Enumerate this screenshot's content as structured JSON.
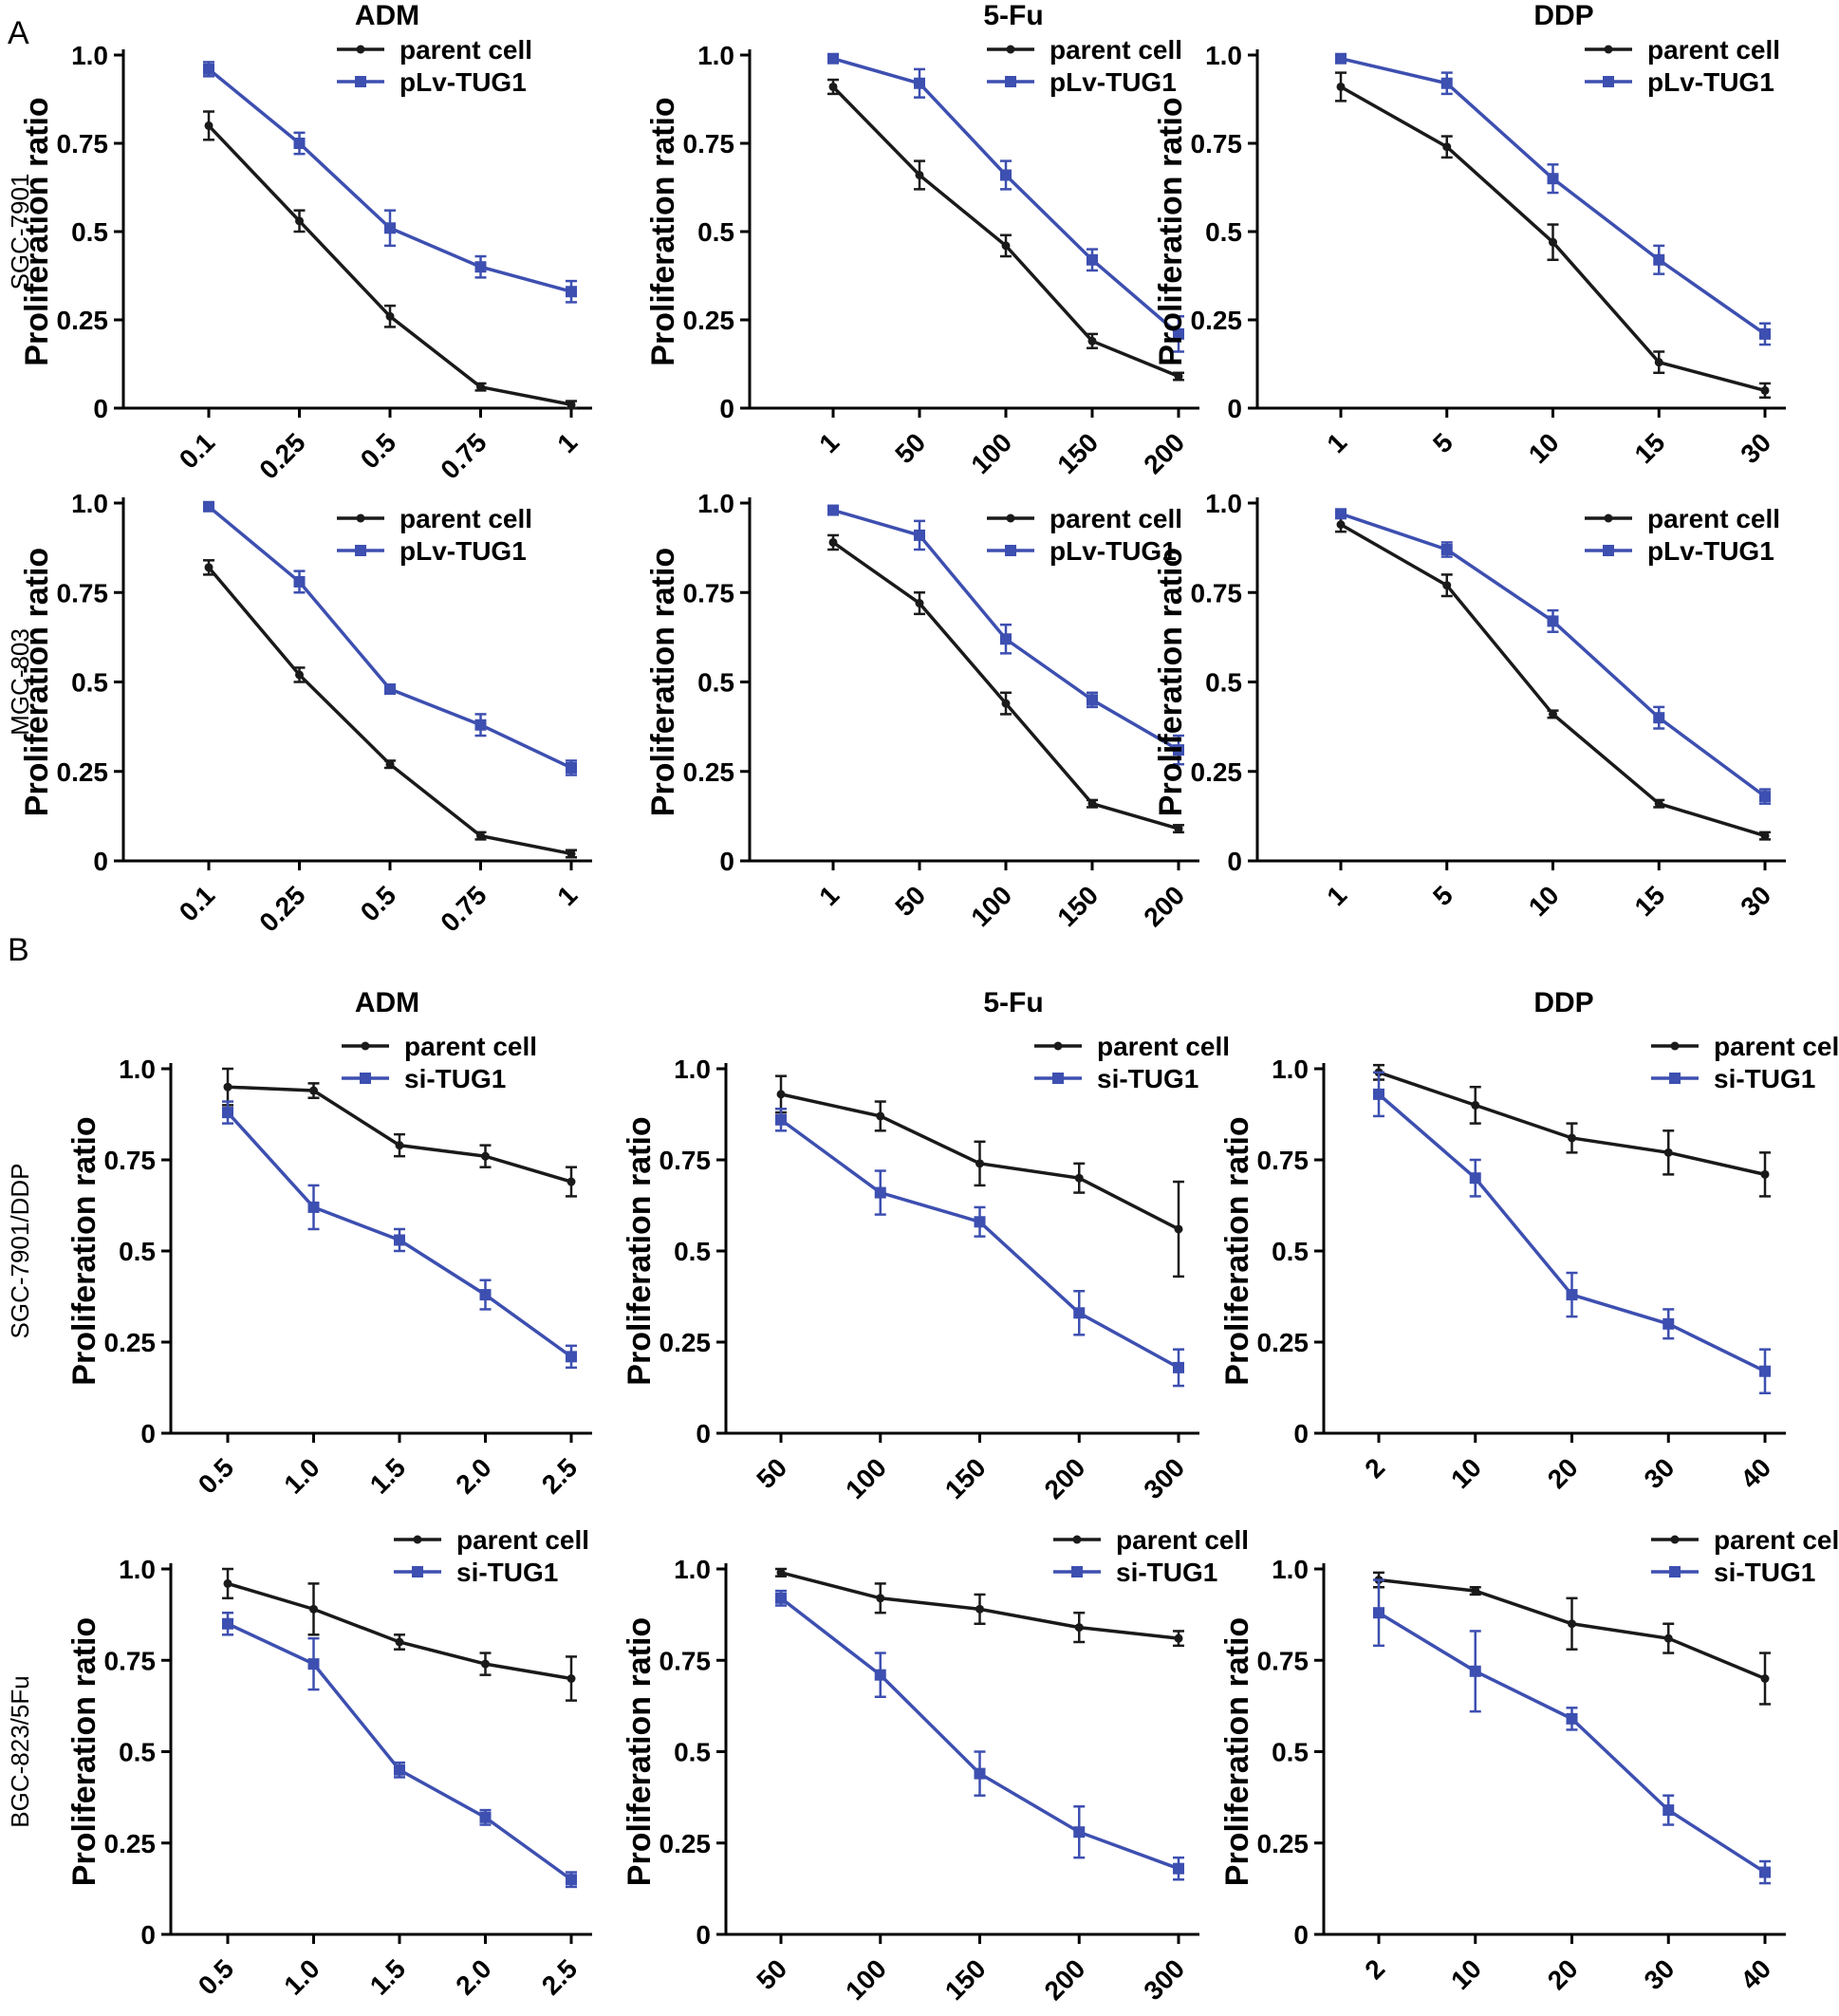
{
  "panel_labels": [
    "A",
    "B"
  ],
  "colors": {
    "parent": "#1a1a1a",
    "treated": "#3d4fb0",
    "axis": "#000000"
  },
  "chart_data": [
    {
      "type": "line",
      "group": "A",
      "row_label": "SGC-7901",
      "title": "ADM",
      "ylabel": "Proliferation ratio",
      "xlabel": "",
      "yticks": [
        "0",
        "0.25",
        "0.5",
        "0.75",
        "1.0"
      ],
      "ylim": [
        0,
        1
      ],
      "categories": [
        "0.1",
        "0.25",
        "0.5",
        "0.75",
        "1"
      ],
      "series": [
        {
          "name": "parent cell",
          "values": [
            0.8,
            0.53,
            0.26,
            0.06,
            0.01
          ],
          "errors": [
            0.04,
            0.03,
            0.03,
            0.01,
            0.01
          ]
        },
        {
          "name": "pLv-TUG1",
          "values": [
            0.96,
            0.75,
            0.51,
            0.4,
            0.33
          ],
          "errors": [
            0.02,
            0.03,
            0.05,
            0.03,
            0.03
          ]
        }
      ]
    },
    {
      "type": "line",
      "group": "A",
      "row_label": "SGC-7901",
      "title": "5-Fu",
      "ylabel": "Proliferation ratio",
      "xlabel": "",
      "yticks": [
        "0",
        "0.25",
        "0.5",
        "0.75",
        "1.0"
      ],
      "ylim": [
        0,
        1
      ],
      "categories": [
        "1",
        "50",
        "100",
        "150",
        "200"
      ],
      "series": [
        {
          "name": "parent cell",
          "values": [
            0.91,
            0.66,
            0.46,
            0.19,
            0.09
          ],
          "errors": [
            0.02,
            0.04,
            0.03,
            0.02,
            0.01
          ]
        },
        {
          "name": "pLv-TUG1",
          "values": [
            0.99,
            0.92,
            0.66,
            0.42,
            0.21
          ],
          "errors": [
            0.01,
            0.04,
            0.04,
            0.03,
            0.05
          ]
        }
      ]
    },
    {
      "type": "line",
      "group": "A",
      "row_label": "SGC-7901",
      "title": "DDP",
      "ylabel": "Proliferation ratio",
      "xlabel": "",
      "yticks": [
        "0",
        "0.25",
        "0.5",
        "0.75",
        "1.0"
      ],
      "ylim": [
        0,
        1
      ],
      "categories": [
        "1",
        "5",
        "10",
        "15",
        "30"
      ],
      "series": [
        {
          "name": "parent cell",
          "values": [
            0.91,
            0.74,
            0.47,
            0.13,
            0.05
          ],
          "errors": [
            0.04,
            0.03,
            0.05,
            0.03,
            0.02
          ]
        },
        {
          "name": "pLv-TUG1",
          "values": [
            0.99,
            0.92,
            0.65,
            0.42,
            0.21
          ],
          "errors": [
            0.01,
            0.03,
            0.04,
            0.04,
            0.03
          ]
        }
      ]
    },
    {
      "type": "line",
      "group": "A",
      "row_label": "MGC-803",
      "title": "",
      "ylabel": "Proliferation ratio",
      "xlabel": "",
      "yticks": [
        "0",
        "0.25",
        "0.5",
        "0.75",
        "1.0"
      ],
      "ylim": [
        0,
        1
      ],
      "categories": [
        "0.1",
        "0.25",
        "0.5",
        "0.75",
        "1"
      ],
      "series": [
        {
          "name": "parent cell",
          "values": [
            0.82,
            0.52,
            0.27,
            0.07,
            0.02
          ],
          "errors": [
            0.02,
            0.02,
            0.01,
            0.01,
            0.01
          ]
        },
        {
          "name": "pLv-TUG1",
          "values": [
            0.99,
            0.78,
            0.48,
            0.38,
            0.26
          ],
          "errors": [
            0.01,
            0.03,
            0.01,
            0.03,
            0.02
          ]
        }
      ]
    },
    {
      "type": "line",
      "group": "A",
      "row_label": "MGC-803",
      "title": "",
      "ylabel": "Proliferation ratio",
      "xlabel": "",
      "yticks": [
        "0",
        "0.25",
        "0.5",
        "0.75",
        "1.0"
      ],
      "ylim": [
        0,
        1
      ],
      "categories": [
        "1",
        "50",
        "100",
        "150",
        "200"
      ],
      "series": [
        {
          "name": "parent cell",
          "values": [
            0.89,
            0.72,
            0.44,
            0.16,
            0.09
          ],
          "errors": [
            0.02,
            0.03,
            0.03,
            0.01,
            0.01
          ]
        },
        {
          "name": "pLv-TUG1",
          "values": [
            0.98,
            0.91,
            0.62,
            0.45,
            0.31
          ],
          "errors": [
            0.01,
            0.04,
            0.04,
            0.02,
            0.04
          ]
        }
      ]
    },
    {
      "type": "line",
      "group": "A",
      "row_label": "MGC-803",
      "title": "",
      "ylabel": "Proliferation ratio",
      "xlabel": "",
      "yticks": [
        "0",
        "0.25",
        "0.5",
        "0.75",
        "1.0"
      ],
      "ylim": [
        0,
        1
      ],
      "categories": [
        "1",
        "5",
        "10",
        "15",
        "30"
      ],
      "series": [
        {
          "name": "parent cell",
          "values": [
            0.94,
            0.77,
            0.41,
            0.16,
            0.07
          ],
          "errors": [
            0.02,
            0.03,
            0.01,
            0.01,
            0.01
          ]
        },
        {
          "name": "pLv-TUG1",
          "values": [
            0.97,
            0.87,
            0.67,
            0.4,
            0.18
          ],
          "errors": [
            0.01,
            0.02,
            0.03,
            0.03,
            0.02
          ]
        }
      ]
    },
    {
      "type": "line",
      "group": "B",
      "row_label": "SGC-7901/DDP",
      "title": "ADM",
      "ylabel": "Proliferation ratio",
      "xlabel": "",
      "yticks": [
        "0",
        "0.25",
        "0.5",
        "0.75",
        "1.0"
      ],
      "ylim": [
        0,
        1
      ],
      "categories": [
        "0.5",
        "1.0",
        "1.5",
        "2.0",
        "2.5"
      ],
      "series": [
        {
          "name": "parent cell",
          "values": [
            0.95,
            0.94,
            0.79,
            0.76,
            0.69
          ],
          "errors": [
            0.05,
            0.02,
            0.03,
            0.03,
            0.04
          ]
        },
        {
          "name": "si-TUG1",
          "values": [
            0.88,
            0.62,
            0.53,
            0.38,
            0.21
          ],
          "errors": [
            0.03,
            0.06,
            0.03,
            0.04,
            0.03
          ]
        }
      ]
    },
    {
      "type": "line",
      "group": "B",
      "row_label": "SGC-7901/DDP",
      "title": "5-Fu",
      "ylabel": "Proliferation ratio",
      "xlabel": "",
      "yticks": [
        "0",
        "0.25",
        "0.5",
        "0.75",
        "1.0"
      ],
      "ylim": [
        0,
        1
      ],
      "categories": [
        "50",
        "100",
        "150",
        "200",
        "300"
      ],
      "series": [
        {
          "name": "parent cell",
          "values": [
            0.93,
            0.87,
            0.74,
            0.7,
            0.56
          ],
          "errors": [
            0.05,
            0.04,
            0.06,
            0.04,
            0.13
          ]
        },
        {
          "name": "si-TUG1",
          "values": [
            0.86,
            0.66,
            0.58,
            0.33,
            0.18
          ],
          "errors": [
            0.03,
            0.06,
            0.04,
            0.06,
            0.05
          ]
        }
      ]
    },
    {
      "type": "line",
      "group": "B",
      "row_label": "SGC-7901/DDP",
      "title": "DDP",
      "ylabel": "Proliferation ratio",
      "xlabel": "",
      "yticks": [
        "0",
        "0.25",
        "0.5",
        "0.75",
        "1.0"
      ],
      "ylim": [
        0,
        1
      ],
      "categories": [
        "2",
        "10",
        "20",
        "30",
        "40"
      ],
      "series": [
        {
          "name": "parent cell",
          "values": [
            0.99,
            0.9,
            0.81,
            0.77,
            0.71
          ],
          "errors": [
            0.02,
            0.05,
            0.04,
            0.06,
            0.06
          ]
        },
        {
          "name": "si-TUG1",
          "values": [
            0.93,
            0.7,
            0.38,
            0.3,
            0.17
          ],
          "errors": [
            0.06,
            0.05,
            0.06,
            0.04,
            0.06
          ]
        }
      ]
    },
    {
      "type": "line",
      "group": "B",
      "row_label": "BGC-823/5Fu",
      "title": "",
      "ylabel": "Proliferation ratio",
      "xlabel": "",
      "yticks": [
        "0",
        "0.25",
        "0.5",
        "0.75",
        "1.0"
      ],
      "ylim": [
        0,
        1
      ],
      "categories": [
        "0.5",
        "1.0",
        "1.5",
        "2.0",
        "2.5"
      ],
      "series": [
        {
          "name": "parent cell",
          "values": [
            0.96,
            0.89,
            0.8,
            0.74,
            0.7
          ],
          "errors": [
            0.04,
            0.07,
            0.02,
            0.03,
            0.06
          ]
        },
        {
          "name": "si-TUG1",
          "values": [
            0.85,
            0.74,
            0.45,
            0.32,
            0.15
          ],
          "errors": [
            0.03,
            0.07,
            0.02,
            0.02,
            0.02
          ]
        }
      ]
    },
    {
      "type": "line",
      "group": "B",
      "row_label": "BGC-823/5Fu",
      "title": "",
      "ylabel": "Proliferation ratio",
      "xlabel": "",
      "yticks": [
        "0",
        "0.25",
        "0.5",
        "0.75",
        "1.0"
      ],
      "ylim": [
        0,
        1
      ],
      "categories": [
        "50",
        "100",
        "150",
        "200",
        "300"
      ],
      "series": [
        {
          "name": "parent cell",
          "values": [
            0.99,
            0.92,
            0.89,
            0.84,
            0.81
          ],
          "errors": [
            0.01,
            0.04,
            0.04,
            0.04,
            0.02
          ]
        },
        {
          "name": "si-TUG1",
          "values": [
            0.92,
            0.71,
            0.44,
            0.28,
            0.18
          ],
          "errors": [
            0.02,
            0.06,
            0.06,
            0.07,
            0.03
          ]
        }
      ]
    },
    {
      "type": "line",
      "group": "B",
      "row_label": "BGC-823/5Fu",
      "title": "",
      "ylabel": "Proliferation ratio",
      "xlabel": "",
      "yticks": [
        "0",
        "0.25",
        "0.5",
        "0.75",
        "1.0"
      ],
      "ylim": [
        0,
        1
      ],
      "categories": [
        "2",
        "10",
        "20",
        "30",
        "40"
      ],
      "series": [
        {
          "name": "parent cell",
          "values": [
            0.97,
            0.94,
            0.85,
            0.81,
            0.7
          ],
          "errors": [
            0.02,
            0.01,
            0.07,
            0.04,
            0.07
          ]
        },
        {
          "name": "si-TUG1",
          "values": [
            0.88,
            0.72,
            0.59,
            0.34,
            0.17
          ],
          "errors": [
            0.09,
            0.11,
            0.03,
            0.04,
            0.03
          ]
        }
      ]
    }
  ]
}
